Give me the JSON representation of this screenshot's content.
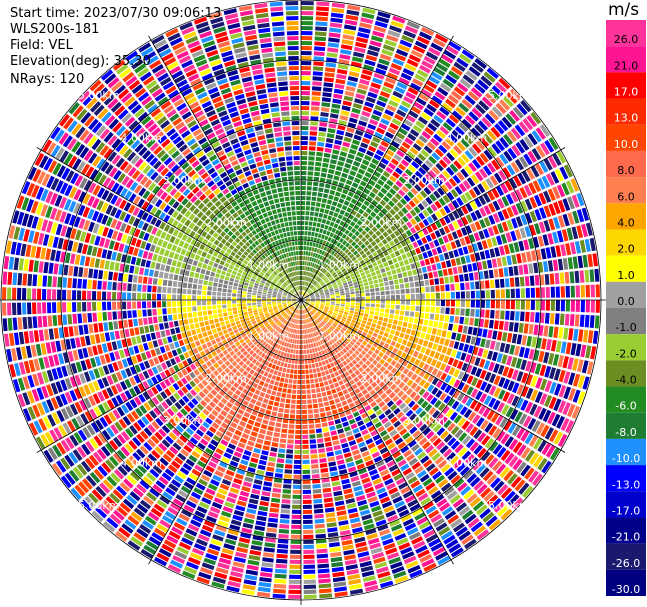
{
  "header": {
    "start_time": "Start time: 2023/07/30 09:06:13",
    "site": "WLS200s-181",
    "field": "Field: VEL",
    "elevation": "Elevation(deg): 35.30",
    "nrays": "NRays: 120"
  },
  "colorbar": {
    "unit": "m/s",
    "ticks": [
      "26.0",
      "21.0",
      "17.0",
      "13.0",
      "10.0",
      "8.0",
      "6.0",
      "4.0",
      "2.0",
      "1.0",
      "0.0",
      "-1.0",
      "-2.0",
      "-4.0",
      "-6.0",
      "-8.0",
      "-10.0",
      "-13.0",
      "-17.0",
      "-21.0",
      "-26.0",
      "-30.0"
    ],
    "colors": [
      "#ff3399",
      "#ff1493",
      "#ff0000",
      "#ff2a00",
      "#ff4500",
      "#ff6a4d",
      "#ff7f50",
      "#ffa500",
      "#ffd700",
      "#ffff00",
      "#a0a0a0",
      "#808080",
      "#9acd32",
      "#6b8e23",
      "#228b22",
      "#1e7d32",
      "#1e90ff",
      "#0000ff",
      "#0000cd",
      "#00008b",
      "#191970",
      "#000080"
    ]
  },
  "chart_data": {
    "type": "heatmap",
    "projection": "PPI (plan position indicator), polar",
    "field": "VEL",
    "units": "m/s",
    "rays": 120,
    "range_rings_km": [
      1.0,
      2.0,
      3.0,
      4.0,
      5.0
    ],
    "ring_labels": [
      "1.00km",
      "2.00km",
      "3.00km",
      "4.00km",
      "5.00km"
    ],
    "max_range_km": 5.0,
    "azimuth_lines_deg": [
      0,
      30,
      60,
      90,
      120,
      150,
      180,
      210,
      240,
      270,
      300,
      330
    ],
    "color_scale_min": -30.0,
    "color_scale_max": 26.0,
    "velocity_pattern": {
      "north_sector": "negative (-4 to -10 m/s, green/blue) up to ~2.2 km",
      "south_sector": "positive (4 to 10 m/s, orange/yellow) up to ~2.2 km",
      "east_west": "near zero (~0 m/s, grey/yellow)",
      "beyond_2.5km": "noise (random colors)"
    }
  }
}
